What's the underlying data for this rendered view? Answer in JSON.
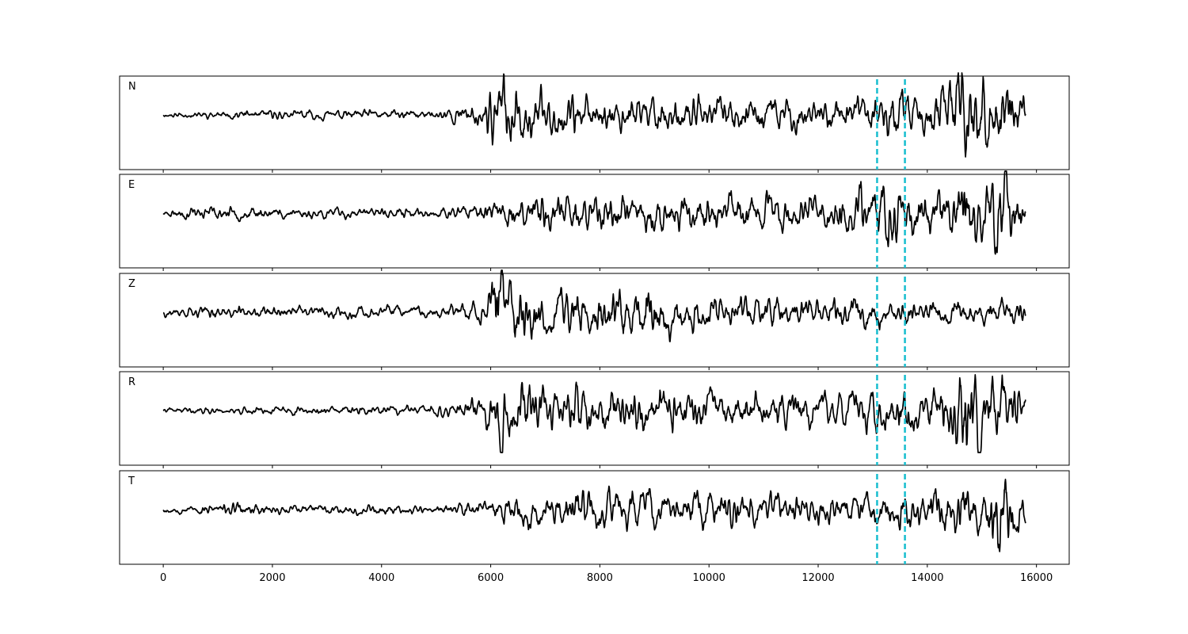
{
  "chart_data": {
    "type": "line",
    "title": "",
    "xlabel": "",
    "ylabel": "",
    "xlim": [
      -800,
      16600
    ],
    "x_ticks": [
      0,
      2000,
      4000,
      6000,
      8000,
      10000,
      12000,
      14000,
      16000
    ],
    "x_tick_labels": [
      "0",
      "2000",
      "4000",
      "6000",
      "8000",
      "10000",
      "12000",
      "14000",
      "16000"
    ],
    "grid": false,
    "trace_color": "#000000",
    "marker_color": "#17becf",
    "markers": [
      {
        "x": 13080,
        "style": "dashed"
      },
      {
        "x": 13590,
        "style": "dashed"
      }
    ],
    "trace_x_range": [
      0,
      15800
    ],
    "ylim": [
      -1,
      1
    ],
    "series": [
      {
        "name": "N",
        "envelope_x": [
          0,
          2000,
          5000,
          5800,
          6100,
          6300,
          7000,
          8000,
          10000,
          12000,
          13000,
          13500,
          14000,
          14500,
          14700,
          15000,
          15400,
          15600,
          15800
        ],
        "envelope_y": [
          0.04,
          0.08,
          0.08,
          0.2,
          0.55,
          0.62,
          0.38,
          0.34,
          0.3,
          0.28,
          0.3,
          0.42,
          0.32,
          0.52,
          0.85,
          0.55,
          0.62,
          0.42,
          0.3
        ],
        "seed": 11
      },
      {
        "name": "E",
        "envelope_x": [
          0,
          500,
          1500,
          5000,
          6000,
          6800,
          8000,
          10000,
          12000,
          13300,
          13700,
          14500,
          14700,
          15000,
          15400,
          15600,
          15800
        ],
        "envelope_y": [
          0.05,
          0.12,
          0.1,
          0.08,
          0.15,
          0.32,
          0.32,
          0.3,
          0.28,
          0.58,
          0.35,
          0.45,
          0.72,
          0.48,
          0.8,
          0.55,
          0.3
        ],
        "seed": 23
      },
      {
        "name": "Z",
        "envelope_x": [
          0,
          1000,
          5000,
          5900,
          6150,
          6300,
          7000,
          8800,
          9500,
          12000,
          13000,
          14000,
          15000,
          15800
        ],
        "envelope_y": [
          0.08,
          0.1,
          0.1,
          0.2,
          0.88,
          0.55,
          0.42,
          0.48,
          0.3,
          0.24,
          0.24,
          0.2,
          0.2,
          0.18
        ],
        "seed": 37
      },
      {
        "name": "R",
        "envelope_x": [
          0,
          2000,
          5000,
          5800,
          6100,
          6400,
          7000,
          8800,
          10000,
          12000,
          13000,
          13500,
          14000,
          14500,
          14700,
          15200,
          15600,
          15800
        ],
        "envelope_y": [
          0.04,
          0.07,
          0.08,
          0.2,
          0.52,
          0.6,
          0.36,
          0.4,
          0.3,
          0.28,
          0.3,
          0.46,
          0.32,
          0.6,
          0.9,
          0.52,
          0.55,
          0.3
        ],
        "seed": 41
      },
      {
        "name": "T",
        "envelope_x": [
          0,
          1600,
          2000,
          5000,
          6000,
          6500,
          8000,
          10000,
          12000,
          13000,
          14000,
          14500,
          14700,
          15000,
          15400,
          15600,
          15800
        ],
        "envelope_y": [
          0.05,
          0.12,
          0.08,
          0.08,
          0.15,
          0.32,
          0.34,
          0.3,
          0.26,
          0.26,
          0.3,
          0.42,
          0.58,
          0.35,
          0.88,
          0.42,
          0.22
        ],
        "seed": 53
      }
    ]
  }
}
